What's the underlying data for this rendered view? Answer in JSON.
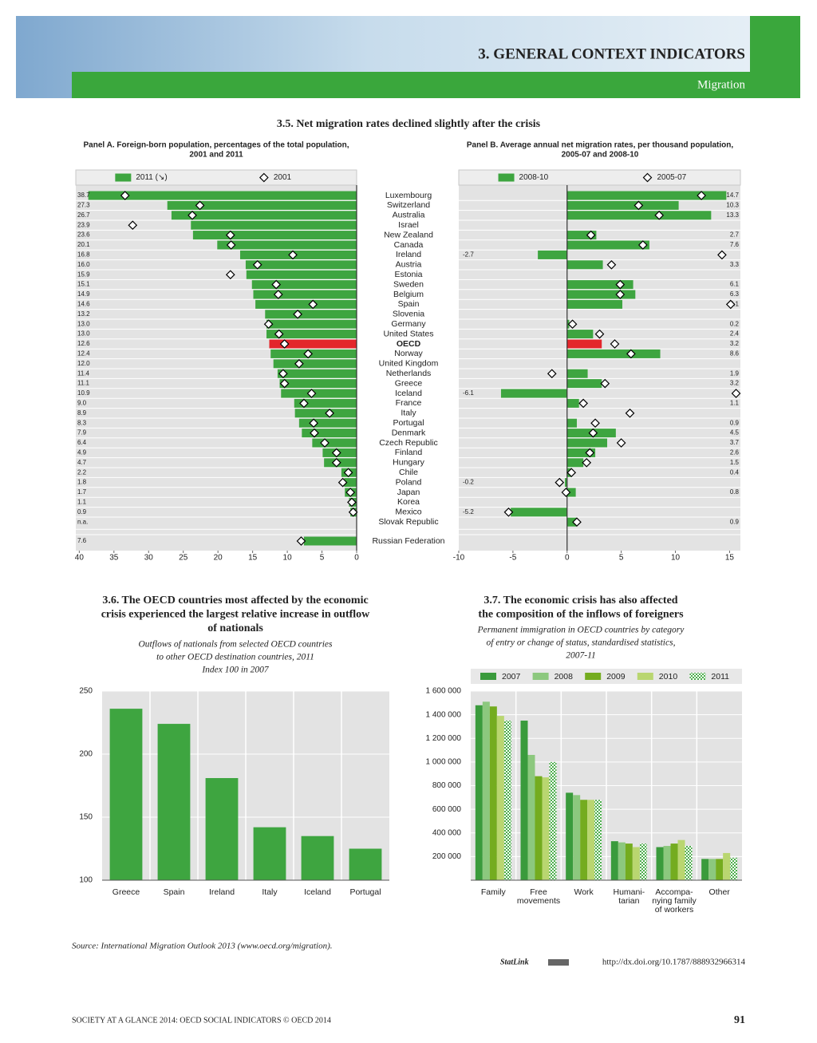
{
  "header": {
    "section": "3. GENERAL CONTEXT INDICATORS",
    "subsection": "Migration"
  },
  "chart_data": [
    {
      "type": "bar",
      "orientation": "horizontal",
      "title": "3.5. Net migration rates declined slightly after the crisis",
      "subtitle": [
        "Panel A. Foreign-born population, percentages of the total population,",
        "2001 and 2011"
      ],
      "categories": [
        "Luxembourg",
        "Switzerland",
        "Australia",
        "Israel",
        "New Zealand",
        "Canada",
        "Ireland",
        "Austria",
        "Estonia",
        "Sweden",
        "Belgium",
        "Spain",
        "Slovenia",
        "Germany",
        "United States",
        "OECD",
        "Norway",
        "United Kingdom",
        "Netherlands",
        "Greece",
        "Iceland",
        "France",
        "Italy",
        "Portugal",
        "Denmark",
        "Czech Republic",
        "Finland",
        "Hungary",
        "Chile",
        "Poland",
        "Japan",
        "Korea",
        "Mexico",
        "Slovak Republic",
        "Russian Federation"
      ],
      "highlight_category": "OECD",
      "highlight_color": "#e3262b",
      "series": [
        {
          "name": "2011 (↘)",
          "color": "#3ea540",
          "values": [
            38.7,
            27.3,
            26.7,
            23.9,
            23.6,
            20.1,
            16.8,
            16.0,
            15.9,
            15.1,
            14.9,
            14.6,
            13.2,
            13.0,
            13.0,
            12.6,
            12.4,
            12.0,
            11.4,
            11.1,
            10.9,
            9.0,
            8.9,
            8.3,
            7.9,
            6.4,
            4.9,
            4.7,
            2.2,
            1.8,
            1.7,
            1.1,
            0.9,
            null,
            7.6
          ],
          "value_labels": [
            "38.7",
            "27.3",
            "26.7",
            "23.9",
            "23.6",
            "20.1",
            "16.8",
            "16.0",
            "15.9",
            "15.1",
            "14.9",
            "14.6",
            "13.2",
            "13.0",
            "13.0",
            "12.6",
            "12.4",
            "12.0",
            "11.4",
            "11.1",
            "10.9",
            "9.0",
            "8.9",
            "8.3",
            "7.9",
            "6.4",
            "4.9",
            "4.7",
            "2.2",
            "1.8",
            "1.7",
            "1.1",
            "0.9",
            "n.a.",
            "7.6"
          ]
        },
        {
          "name": "2001",
          "marker": "diamond",
          "color": "#ffffff",
          "values": [
            33.4,
            22.6,
            23.7,
            32.3,
            18.2,
            18.1,
            9.2,
            14.3,
            18.2,
            11.6,
            11.3,
            6.3,
            8.5,
            12.7,
            11.2,
            10.4,
            7.0,
            8.3,
            10.6,
            10.4,
            6.5,
            7.6,
            3.9,
            6.2,
            6.1,
            4.6,
            2.9,
            2.9,
            1.2,
            2.0,
            0.9,
            0.7,
            0.5,
            null,
            8.0
          ]
        }
      ],
      "xlim": [
        40.5,
        0
      ],
      "xticks": [
        40,
        35,
        30,
        25,
        20,
        15,
        10,
        5,
        0
      ]
    },
    {
      "type": "bar",
      "orientation": "horizontal",
      "subtitle": [
        "Panel B. Average annual net migration rates, per thousand population,",
        "2005-07 and 2008-10"
      ],
      "highlight_category": "OECD",
      "highlight_color": "#e3262b",
      "series": [
        {
          "name": "2008-10",
          "color": "#3ea540",
          "values": [
            14.7,
            10.3,
            13.3,
            null,
            2.7,
            7.6,
            -2.7,
            3.3,
            null,
            6.1,
            6.3,
            5.1,
            null,
            0.2,
            2.4,
            3.2,
            8.6,
            null,
            1.9,
            3.2,
            -6.1,
            1.1,
            null,
            0.9,
            4.5,
            3.7,
            2.6,
            1.5,
            0.4,
            -0.2,
            0.8,
            null,
            -5.2,
            0.9,
            null
          ]
        },
        {
          "name": "2005-07",
          "marker": "diamond",
          "color": "#ffffff",
          "values": [
            12.4,
            6.6,
            8.5,
            null,
            2.2,
            7.0,
            14.3,
            4.1,
            null,
            4.9,
            4.9,
            15.1,
            null,
            0.5,
            3.0,
            4.4,
            5.9,
            null,
            -1.4,
            3.5,
            15.6,
            1.5,
            5.8,
            2.6,
            2.4,
            5.0,
            2.1,
            1.8,
            0.4,
            -0.7,
            -0.1,
            null,
            -5.4,
            0.9,
            null
          ]
        }
      ],
      "xlim": [
        -10,
        16
      ],
      "xticks": [
        -10,
        -5,
        0,
        5,
        10,
        15
      ]
    },
    {
      "type": "bar",
      "title": [
        "3.6. The OECD countries most affected by the economic",
        "crisis experienced the largest relative increase in outflow",
        "of nationals"
      ],
      "subtitle": [
        "Outflows of nationals from selected OECD countries",
        "to other OECD destination countries, 2011",
        "Index 100 in 2007"
      ],
      "categories": [
        "Greece",
        "Spain",
        "Ireland",
        "Italy",
        "Iceland",
        "Portugal"
      ],
      "values": [
        236,
        224,
        181,
        142,
        135,
        125
      ],
      "color": "#3ea540",
      "ylim": [
        100,
        250
      ],
      "yticks": [
        100,
        150,
        200,
        250
      ],
      "grid": true
    },
    {
      "type": "bar",
      "title": [
        "3.7. The economic crisis has also affected",
        "the composition of the inflows of foreigners"
      ],
      "subtitle": [
        "Permanent immigration in OECD countries by category",
        "of entry or change of status, standardised statistics,",
        "2007-11"
      ],
      "categories": [
        [
          "Family"
        ],
        [
          "Free",
          "movements"
        ],
        [
          "Work"
        ],
        [
          "Humani-",
          "tarian"
        ],
        [
          "Accompa-",
          "nying family",
          "of workers"
        ],
        [
          "Other"
        ]
      ],
      "series": [
        {
          "name": "2007",
          "color": "#3a9b3c",
          "values": [
            1480000,
            1350000,
            740000,
            330000,
            280000,
            180000
          ]
        },
        {
          "name": "2008",
          "color": "#8cc87e",
          "values": [
            1510000,
            1060000,
            720000,
            320000,
            290000,
            180000
          ]
        },
        {
          "name": "2009",
          "color": "#74ac1f",
          "values": [
            1470000,
            880000,
            680000,
            310000,
            310000,
            180000
          ]
        },
        {
          "name": "2010",
          "color": "#b9d670",
          "values": [
            1390000,
            870000,
            680000,
            280000,
            340000,
            230000
          ]
        },
        {
          "name": "2011",
          "color": "#4cae4c",
          "hatch": true,
          "values": [
            1350000,
            1000000,
            680000,
            310000,
            290000,
            190000
          ]
        }
      ],
      "ylim": [
        0,
        1600000
      ],
      "yticks": [
        {
          "value": 200000,
          "label": "200 000"
        },
        {
          "value": 400000,
          "label": "400 000"
        },
        {
          "value": 600000,
          "label": "600 000"
        },
        {
          "value": 800000,
          "label": "800 000"
        },
        {
          "value": 1000000,
          "label": "1 000 000"
        },
        {
          "value": 1200000,
          "label": "1 200 000"
        },
        {
          "value": 1400000,
          "label": "1 400 000"
        },
        {
          "value": 1600000,
          "label": "1 600 000"
        }
      ],
      "grid": true
    }
  ],
  "source": "Source:  International Migration Outlook 2013 (www.oecd.org/migration).",
  "statlink_label": "StatLink",
  "statlink_url": "http://dx.doi.org/10.1787/888932966314",
  "footer": "SOCIETY AT A GLANCE 2014: OECD SOCIAL INDICATORS © OECD 2014",
  "page_number": "91"
}
